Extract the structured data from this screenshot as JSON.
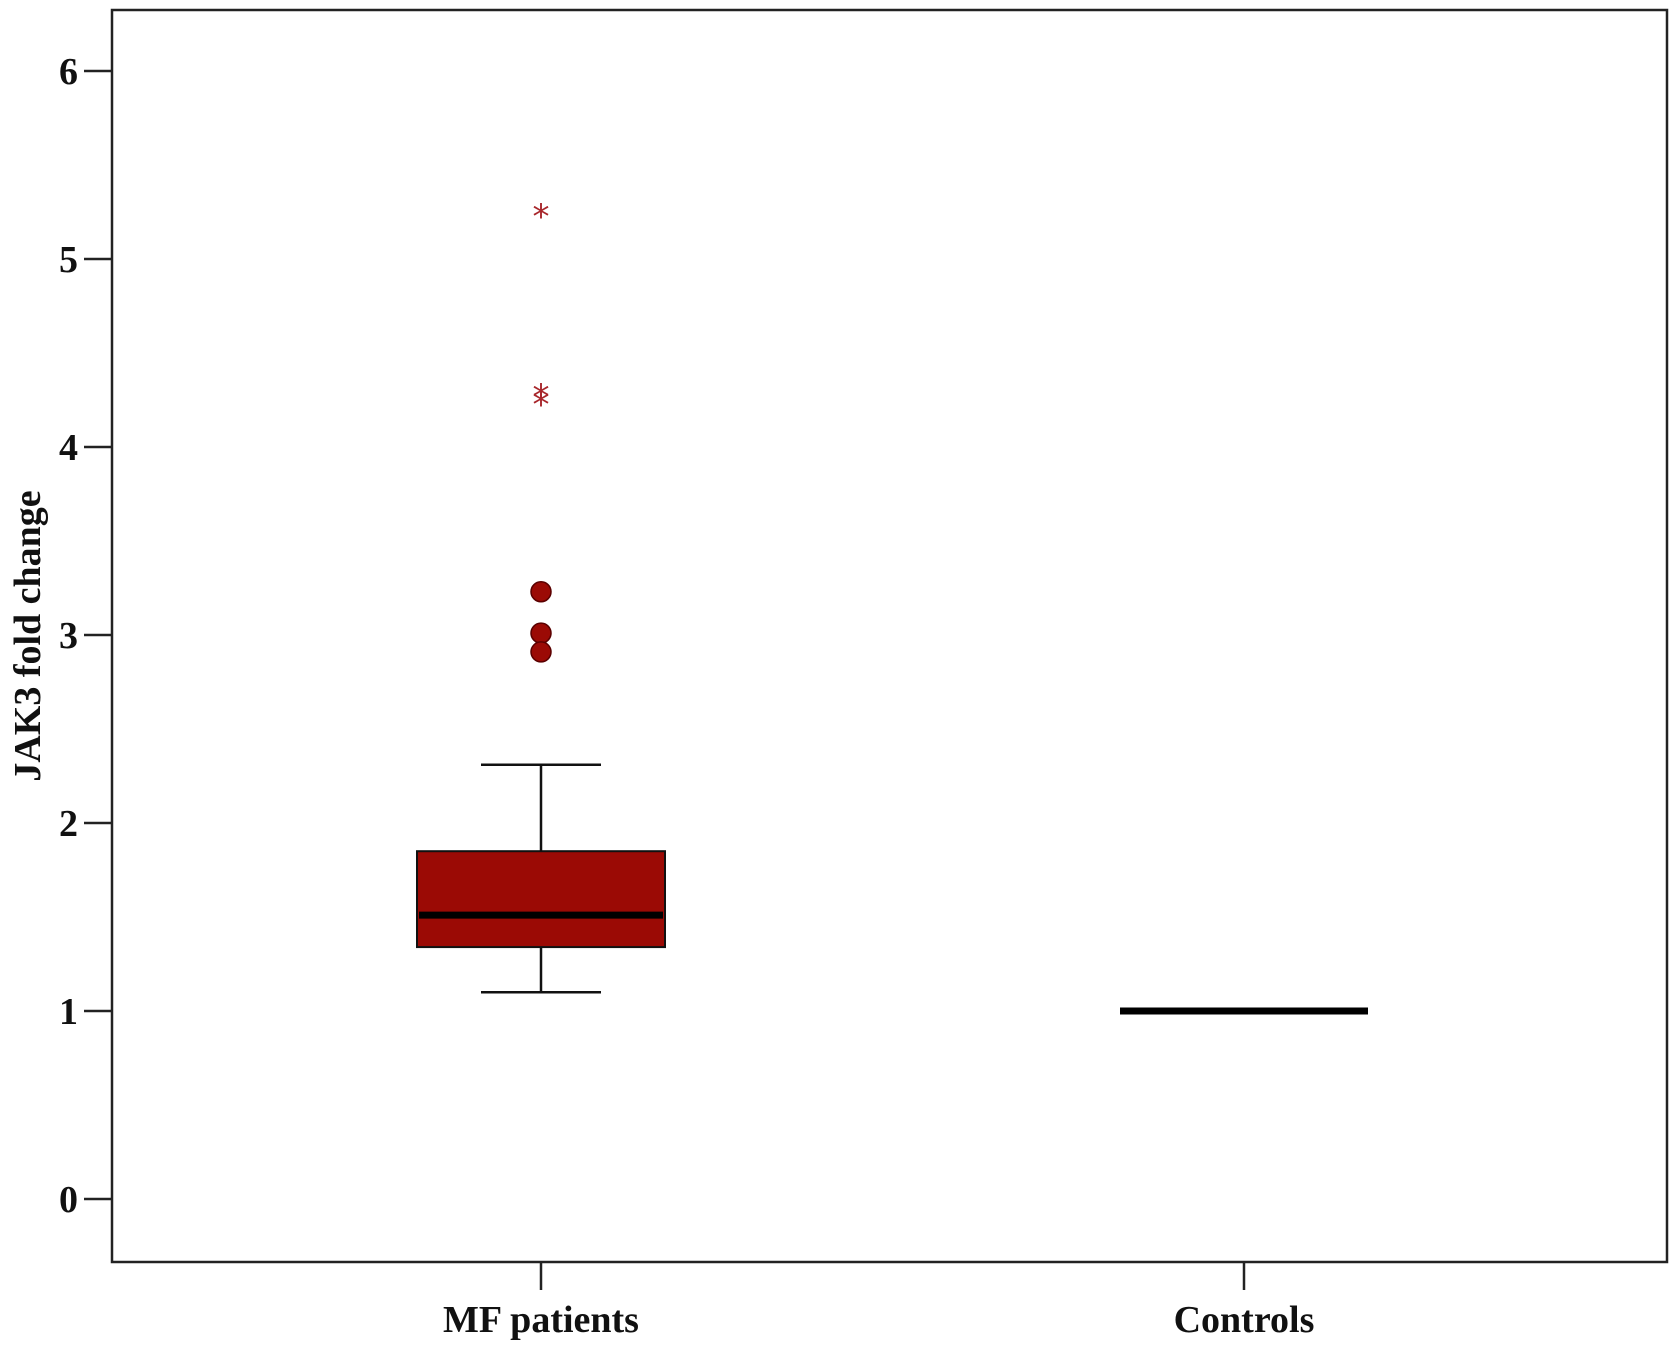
{
  "chart_data": {
    "type": "box",
    "ylabel": "JAK3 fold change",
    "xlabel": "",
    "ylim": [
      0,
      6
    ],
    "yticks": [
      0,
      1,
      2,
      3,
      4,
      5,
      6
    ],
    "categories": [
      "MF patients",
      "Controls"
    ],
    "boxes": [
      {
        "category": "MF patients",
        "whisker_low": 1.1,
        "q1": 1.34,
        "median": 1.51,
        "q3": 1.85,
        "whisker_high": 2.31,
        "outliers": [
          3.23,
          3.01,
          2.91
        ],
        "extremes": [
          5.23,
          4.27,
          4.23
        ],
        "color": "#9b0a05"
      },
      {
        "category": "Controls",
        "whisker_low": 1.0,
        "q1": 1.0,
        "median": 1.0,
        "q3": 1.0,
        "whisker_high": 1.0,
        "outliers": [],
        "extremes": [],
        "color": "#9b0a05"
      }
    ],
    "grid": false,
    "legend": "none",
    "colors": {
      "box_fill": "#9b0a05",
      "median_line": "#000000",
      "axis": "#222222",
      "extreme_marker": "#a8262b"
    }
  }
}
